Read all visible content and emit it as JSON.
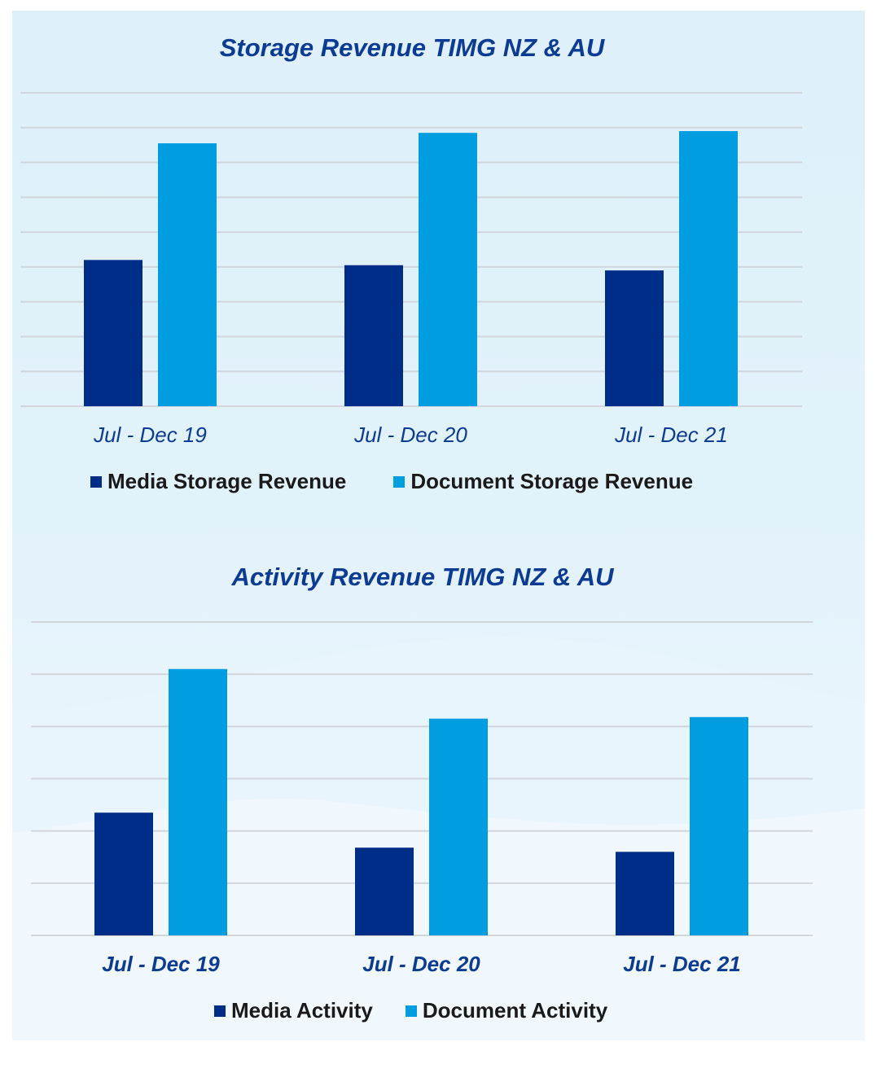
{
  "colors": {
    "media": "#002d87",
    "document": "#009ee0",
    "grid": "#d0d6dc"
  },
  "chart_data": [
    {
      "type": "bar",
      "title": "Storage Revenue TIMG NZ & AU",
      "categories": [
        "Jul - Dec 19",
        "Jul - Dec 20",
        "Jul - Dec 21"
      ],
      "series": [
        {
          "name": "Media Storage Revenue",
          "values": [
            4.2,
            4.05,
            3.9
          ]
        },
        {
          "name": "Document Storage Revenue",
          "values": [
            7.55,
            7.85,
            7.9
          ]
        }
      ],
      "ylim": [
        0,
        9
      ],
      "grid": true,
      "legend": "bottom"
    },
    {
      "type": "bar",
      "title": "Activity Revenue TIMG NZ & AU",
      "categories": [
        "Jul - Dec 19",
        "Jul - Dec 20",
        "Jul - Dec 21"
      ],
      "series": [
        {
          "name": "Media Activity",
          "values": [
            2.35,
            1.68,
            1.6
          ]
        },
        {
          "name": "Document Activity",
          "values": [
            5.1,
            4.15,
            4.18
          ]
        }
      ],
      "ylim": [
        0,
        6
      ],
      "grid": true,
      "legend": "bottom"
    }
  ]
}
